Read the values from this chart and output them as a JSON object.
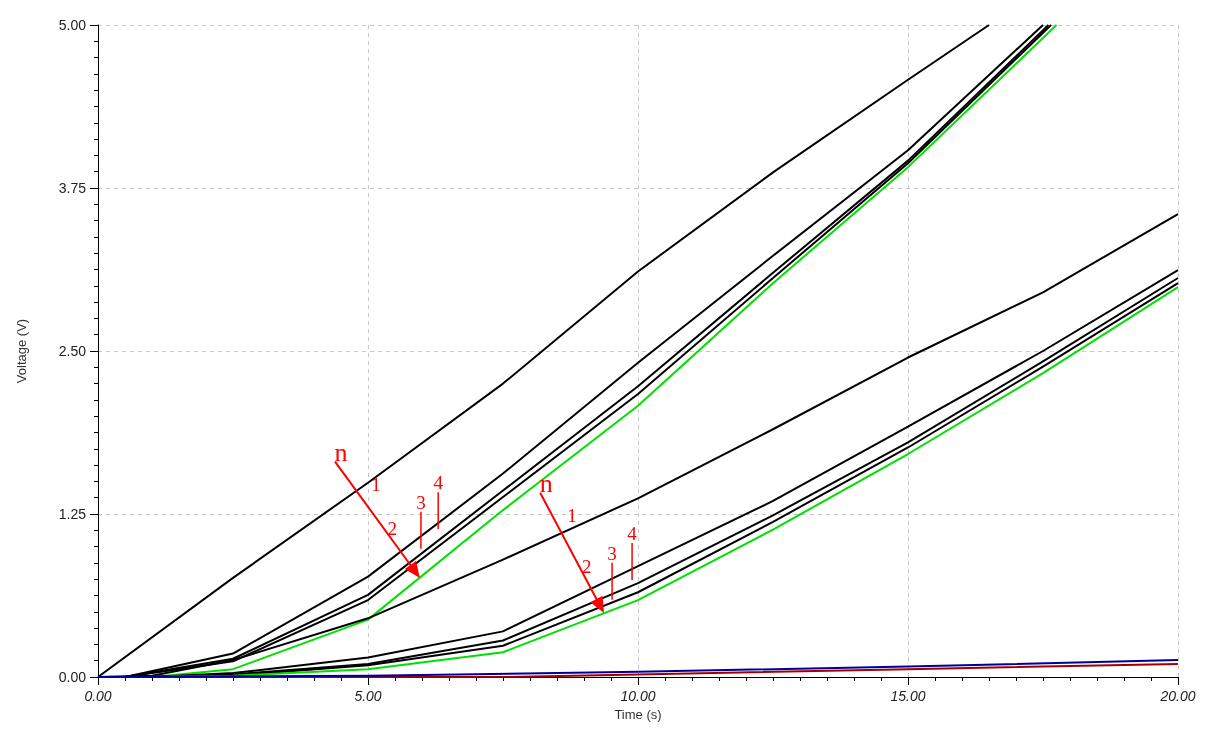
{
  "chart_data": {
    "type": "line",
    "xlabel": "Time (s)",
    "ylabel": "Voltage (V)",
    "xlim": [
      0,
      20
    ],
    "ylim": [
      0,
      5
    ],
    "xticks": [
      {
        "value": 0,
        "label": "0.00"
      },
      {
        "value": 5,
        "label": "5.00"
      },
      {
        "value": 10,
        "label": "10.00"
      },
      {
        "value": 15,
        "label": "15.00"
      },
      {
        "value": 20,
        "label": "20.00"
      }
    ],
    "yticks": [
      {
        "value": 0,
        "label": "0.00"
      },
      {
        "value": 1.25,
        "label": "1.25"
      },
      {
        "value": 2.5,
        "label": "2.50"
      },
      {
        "value": 3.75,
        "label": "3.75"
      },
      {
        "value": 5,
        "label": "5.00"
      }
    ],
    "grid": true,
    "series": [
      {
        "color": "#000000",
        "x": [
          0,
          2.5,
          5,
          7.5,
          10,
          12.5,
          15,
          16.5
        ],
        "values": [
          0,
          0.76,
          1.49,
          2.25,
          3.11,
          3.87,
          4.58,
          5.0
        ]
      },
      {
        "color": "#000000",
        "x": [
          0,
          0.5,
          2.5,
          5,
          7.5,
          10,
          12.5,
          15,
          17.5
        ],
        "values": [
          0,
          0,
          0.18,
          0.77,
          1.56,
          2.41,
          3.23,
          4.04,
          5.0
        ]
      },
      {
        "color": "#000000",
        "x": [
          0,
          0.5,
          2.5,
          5,
          7.5,
          10,
          12.5,
          15,
          17.6
        ],
        "values": [
          0,
          0,
          0.14,
          0.63,
          1.43,
          2.23,
          3.1,
          3.96,
          5.0
        ]
      },
      {
        "color": "#000000",
        "x": [
          0,
          0.5,
          2.5,
          5,
          7.5,
          10,
          12.5,
          15,
          17.65
        ],
        "values": [
          0,
          0,
          0.12,
          0.59,
          1.38,
          2.17,
          3.06,
          3.94,
          5.0
        ]
      },
      {
        "color": "#00e000",
        "x": [
          0,
          1,
          2.5,
          5,
          7.5,
          10,
          12.5,
          15,
          17.75
        ],
        "values": [
          0,
          0,
          0.06,
          0.44,
          1.28,
          2.08,
          3.02,
          3.91,
          5.0
        ]
      },
      {
        "color": "#000000",
        "x": [
          0,
          1,
          2.5,
          5,
          7.5,
          10,
          12.5,
          15,
          17.5,
          20
        ],
        "values": [
          0,
          0.01,
          0.13,
          0.45,
          0.9,
          1.37,
          1.9,
          2.45,
          2.95,
          3.55
        ]
      },
      {
        "color": "#000000",
        "x": [
          0,
          1,
          2.5,
          5,
          7.5,
          10,
          12.5,
          15,
          17.5,
          20
        ],
        "values": [
          0,
          0,
          0.03,
          0.15,
          0.35,
          0.85,
          1.35,
          1.92,
          2.5,
          3.12
        ]
      },
      {
        "color": "#000000",
        "x": [
          0,
          1,
          2.5,
          5,
          7.5,
          10,
          12.5,
          15,
          17.5,
          20
        ],
        "values": [
          0,
          0,
          0.02,
          0.1,
          0.28,
          0.72,
          1.24,
          1.8,
          2.42,
          3.06
        ]
      },
      {
        "color": "#000000",
        "x": [
          0,
          1,
          2.5,
          5,
          7.5,
          10,
          12.5,
          15,
          17.5,
          20
        ],
        "values": [
          0,
          0,
          0.01,
          0.09,
          0.24,
          0.65,
          1.19,
          1.76,
          2.38,
          3.02
        ]
      },
      {
        "color": "#00e000",
        "x": [
          0,
          1,
          2.5,
          5,
          7.5,
          10,
          12.5,
          15,
          17.5,
          20
        ],
        "values": [
          0,
          0,
          0.01,
          0.06,
          0.19,
          0.59,
          1.13,
          1.71,
          2.33,
          2.99
        ]
      },
      {
        "color": "#a00000",
        "x": [
          0,
          7.5,
          10,
          15,
          20
        ],
        "values": [
          0,
          0,
          0.02,
          0.06,
          0.1
        ]
      },
      {
        "color": "#000099",
        "x": [
          0,
          5,
          10,
          15,
          20
        ],
        "values": [
          0,
          0.01,
          0.04,
          0.08,
          0.13
        ]
      }
    ],
    "annotations": [
      "n",
      "1",
      "2",
      "3",
      "4",
      "n",
      "1",
      "2",
      "3",
      "4"
    ]
  }
}
